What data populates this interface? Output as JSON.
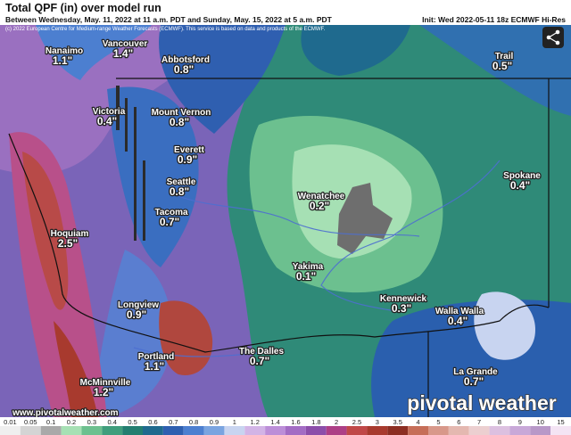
{
  "header": {
    "title": "Total QPF (in) over model run",
    "subtitle": "Between Wednesday, May. 11, 2022 at 11 a.m. PDT and Sunday, May. 15, 2022 at 5 a.m. PDT",
    "init": "Init: Wed 2022-05-11 18z ECMWF Hi-Res",
    "copyright": "(c) 2022 European Centre for Medium-range Weather Forecasts (ECMWF). This service is based on data and products of the ECMWF."
  },
  "cities": [
    {
      "name": "Nanaimo",
      "value": "1.1\""
    },
    {
      "name": "Vancouver",
      "value": "1.4\""
    },
    {
      "name": "Abbotsford",
      "value": "0.8\""
    },
    {
      "name": "Victoria",
      "value": "0.4\""
    },
    {
      "name": "Mount Vernon",
      "value": "0.8\""
    },
    {
      "name": "Everett",
      "value": "0.9\""
    },
    {
      "name": "Seattle",
      "value": "0.8\""
    },
    {
      "name": "Tacoma",
      "value": "0.7\""
    },
    {
      "name": "Hoquiam",
      "value": "2.5\""
    },
    {
      "name": "Wenatchee",
      "value": "0.2\""
    },
    {
      "name": "Yakima",
      "value": "0.1\""
    },
    {
      "name": "Kennewick",
      "value": "0.3\""
    },
    {
      "name": "Walla Walla",
      "value": "0.4\""
    },
    {
      "name": "Spokane",
      "value": "0.4\""
    },
    {
      "name": "Trail",
      "value": "0.5\""
    },
    {
      "name": "Longview",
      "value": "0.9\""
    },
    {
      "name": "Portland",
      "value": "1.1\""
    },
    {
      "name": "The Dalles",
      "value": "0.7\""
    },
    {
      "name": "McMinnville",
      "value": "1.2\""
    },
    {
      "name": "La Grande",
      "value": "0.7\""
    }
  ],
  "footer": {
    "website": "www.pivotalweather.com",
    "logo": "pivotal weather"
  },
  "colorbar": [
    {
      "label": "0.01",
      "color": "#efefef"
    },
    {
      "label": "0.05",
      "color": "#d4d4d4"
    },
    {
      "label": "0.1",
      "color": "#a9a9a9"
    },
    {
      "label": "0.2",
      "color": "#a6e0b4"
    },
    {
      "label": "0.3",
      "color": "#6cc08f"
    },
    {
      "label": "0.4",
      "color": "#3f9e7c"
    },
    {
      "label": "0.5",
      "color": "#237e70"
    },
    {
      "label": "0.6",
      "color": "#1f6a8e"
    },
    {
      "label": "0.7",
      "color": "#2e5fb0"
    },
    {
      "label": "0.8",
      "color": "#4c7fd0"
    },
    {
      "label": "0.9",
      "color": "#7aa4e0"
    },
    {
      "label": "1",
      "color": "#c8d4f0"
    },
    {
      "label": "1.2",
      "color": "#d2b4e6"
    },
    {
      "label": "1.4",
      "color": "#bc8ed8"
    },
    {
      "label": "1.6",
      "color": "#a36cc4"
    },
    {
      "label": "1.8",
      "color": "#8c4eaa"
    },
    {
      "label": "2",
      "color": "#ad3f86"
    },
    {
      "label": "2.5",
      "color": "#c04848"
    },
    {
      "label": "3",
      "color": "#a83a2e"
    },
    {
      "label": "3.5",
      "color": "#8c2e22"
    },
    {
      "label": "4",
      "color": "#c66e58"
    },
    {
      "label": "5",
      "color": "#d8988a"
    },
    {
      "label": "6",
      "color": "#e4b8b0"
    },
    {
      "label": "7",
      "color": "#eccfd0"
    },
    {
      "label": "8",
      "color": "#dcc0e0"
    },
    {
      "label": "9",
      "color": "#c8a8d8"
    },
    {
      "label": "10",
      "color": "#b898c8"
    },
    {
      "label": "15",
      "color": "#f4e4f4"
    }
  ]
}
